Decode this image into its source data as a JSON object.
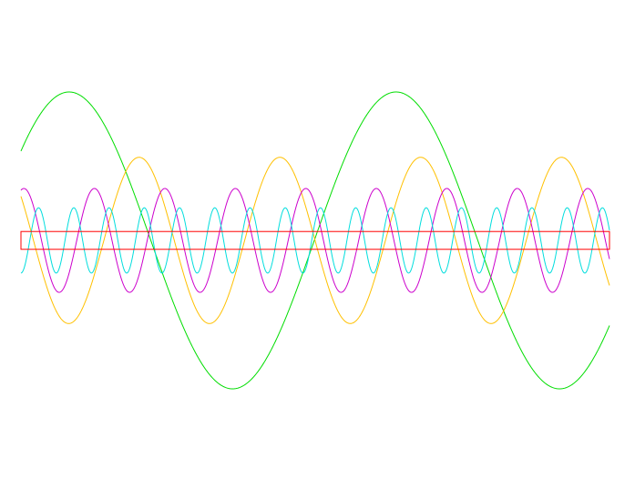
{
  "chart_data": {
    "type": "line",
    "title": "",
    "xlabel": "",
    "ylabel": "",
    "grid": false,
    "legend": "none",
    "x_range": [
      0,
      1
    ],
    "y_range": [
      -1,
      1
    ],
    "series": [
      {
        "color": "#00dd00",
        "amplitude": 1.0,
        "cycles": 1.8,
        "phase_deg": 37,
        "form": "sine"
      },
      {
        "color": "#ffc000",
        "amplitude": 0.56,
        "cycles": 4.18,
        "phase_deg": 148,
        "form": "sine"
      },
      {
        "color": "#cc00cc",
        "amplitude": 0.35,
        "cycles": 8.35,
        "phase_deg": 75,
        "form": "sine"
      },
      {
        "color": "#00dddd",
        "amplitude": 0.22,
        "cycles": 16.7,
        "phase_deg": 270,
        "form": "sine"
      },
      {
        "color": "#ff0000",
        "amplitude": 0.02,
        "cycles": 0,
        "phase_deg": 0,
        "form": "band"
      }
    ]
  }
}
